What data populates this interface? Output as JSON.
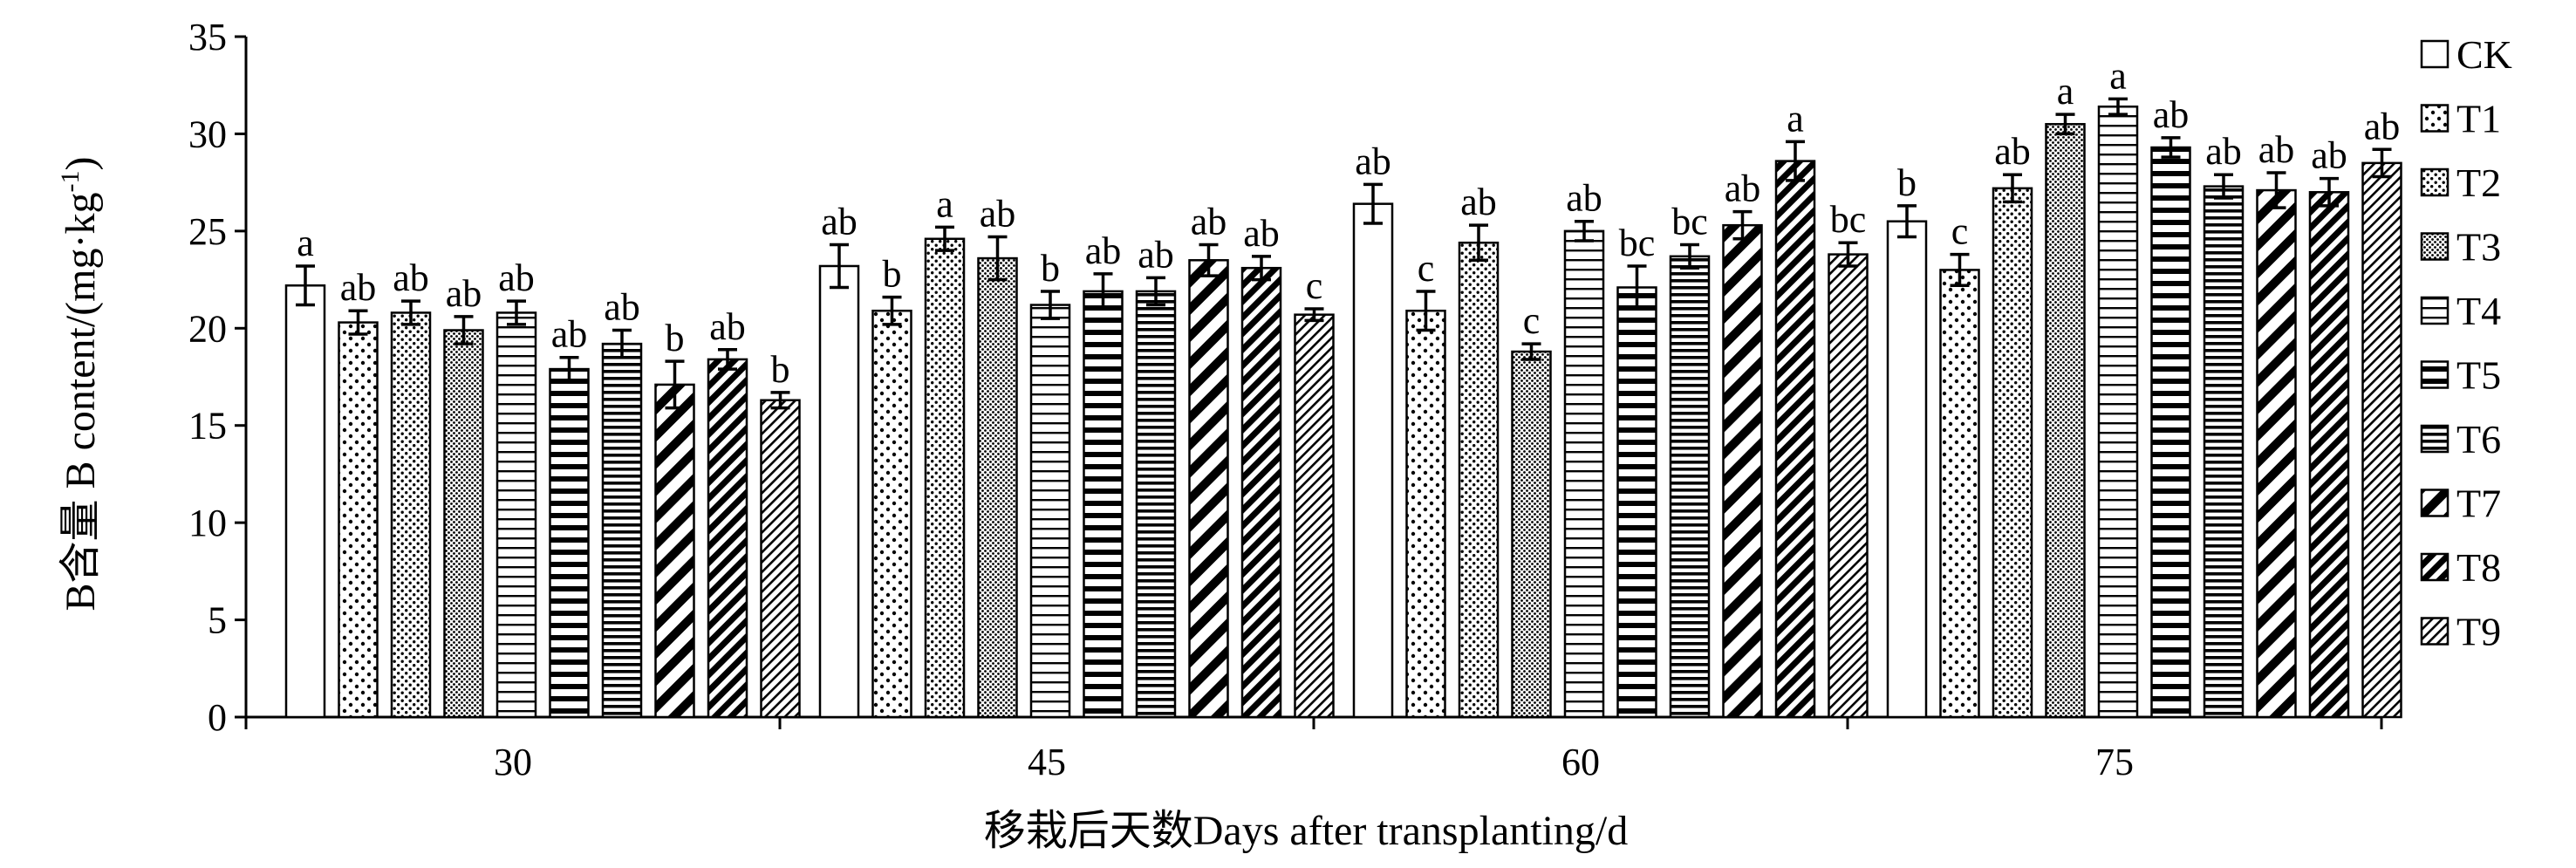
{
  "chart_data": {
    "type": "bar",
    "title": "",
    "xlabel": "移栽后天数Days after transplanting/d",
    "ylabel": "B含量 B content/(mg·kg⁻¹)",
    "ylabel_parts": {
      "main": "B含量 B content/(mg·kg",
      "exp": "-1",
      "close": ")"
    },
    "ylim": [
      0,
      35
    ],
    "yticks": [
      0,
      5,
      10,
      15,
      20,
      25,
      30,
      35
    ],
    "categories": [
      "30",
      "45",
      "60",
      "75"
    ],
    "grid": false,
    "legend_position": "right",
    "series": [
      {
        "name": "CK",
        "pattern": "blank",
        "values": [
          22.2,
          23.2,
          26.4,
          25.5
        ],
        "errors": [
          1.0,
          1.1,
          1.0,
          0.8
        ],
        "letters": [
          "a",
          "ab",
          "ab",
          "b"
        ]
      },
      {
        "name": "T1",
        "pattern": "sparse-dots",
        "values": [
          20.3,
          20.9,
          20.9,
          23.0
        ],
        "errors": [
          0.6,
          0.7,
          1.0,
          0.8
        ],
        "letters": [
          "ab",
          "b",
          "c",
          "c"
        ]
      },
      {
        "name": "T2",
        "pattern": "dots",
        "values": [
          20.8,
          24.6,
          24.4,
          27.2
        ],
        "errors": [
          0.6,
          0.6,
          0.9,
          0.7
        ],
        "letters": [
          "ab",
          "a",
          "ab",
          "ab"
        ]
      },
      {
        "name": "T3",
        "pattern": "dense-dots",
        "values": [
          19.9,
          23.6,
          18.8,
          30.5
        ],
        "errors": [
          0.7,
          1.1,
          0.4,
          0.5
        ],
        "letters": [
          "ab",
          "ab",
          "c",
          "a"
        ]
      },
      {
        "name": "T4",
        "pattern": "h-lines",
        "values": [
          20.8,
          21.2,
          25.0,
          31.4
        ],
        "errors": [
          0.6,
          0.7,
          0.5,
          0.4
        ],
        "letters": [
          "ab",
          "b",
          "ab",
          "a"
        ]
      },
      {
        "name": "T5",
        "pattern": "thick-h-lines",
        "values": [
          17.9,
          21.9,
          22.1,
          29.3
        ],
        "errors": [
          0.6,
          0.9,
          1.1,
          0.5
        ],
        "letters": [
          "ab",
          "ab",
          "bc",
          "ab"
        ]
      },
      {
        "name": "T6",
        "pattern": "dense-h-lines",
        "values": [
          19.2,
          21.9,
          23.7,
          27.3
        ],
        "errors": [
          0.7,
          0.7,
          0.6,
          0.6
        ],
        "letters": [
          "ab",
          "ab",
          "bc",
          "ab"
        ]
      },
      {
        "name": "T7",
        "pattern": "wide-diag",
        "values": [
          17.1,
          23.5,
          25.3,
          27.1
        ],
        "errors": [
          1.2,
          0.8,
          0.7,
          0.9
        ],
        "letters": [
          "b",
          "ab",
          "ab",
          "ab"
        ]
      },
      {
        "name": "T8",
        "pattern": "thick-diag",
        "values": [
          18.4,
          23.1,
          28.6,
          27.0
        ],
        "errors": [
          0.5,
          0.6,
          1.0,
          0.7
        ],
        "letters": [
          "ab",
          "ab",
          "a",
          "ab"
        ]
      },
      {
        "name": "T9",
        "pattern": "thin-diag",
        "values": [
          16.3,
          20.7,
          23.8,
          28.5
        ],
        "errors": [
          0.4,
          0.3,
          0.6,
          0.7
        ],
        "letters": [
          "b",
          "c",
          "bc",
          "ab"
        ]
      }
    ]
  }
}
